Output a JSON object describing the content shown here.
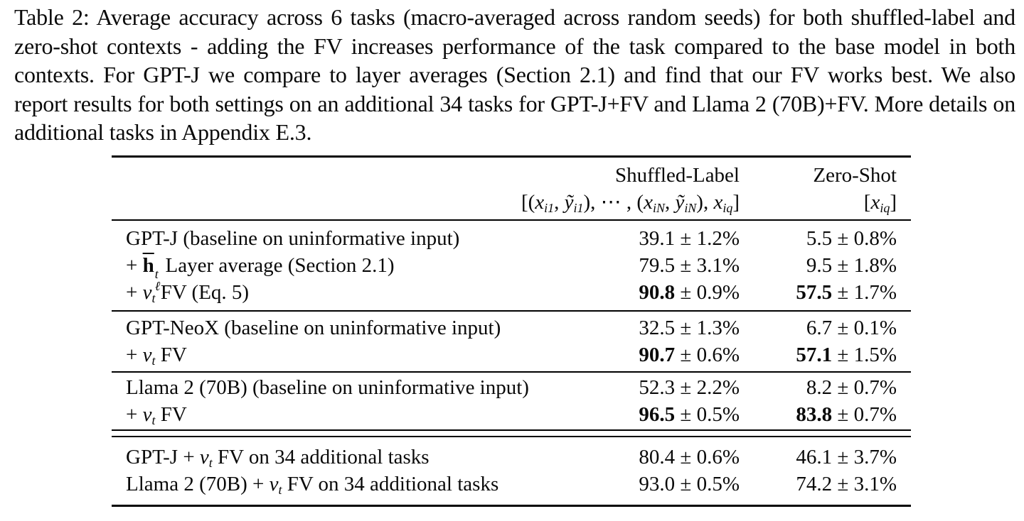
{
  "caption": {
    "text": "Table 2: Average accuracy across 6 tasks (macro-averaged across random seeds) for both shuffled-label and zero-shot contexts - adding the FV increases performance of the task compared to the base model in both contexts. For GPT-J we compare to layer averages (Section 2.1) and find that our FV works best. We also report results for both settings on an additional 34 tasks for GPT-J+FV and Llama 2 (70B)+FV. More details on additional tasks in Appendix E.3."
  },
  "table": {
    "header": {
      "col1": {
        "title": "Shuffled-Label",
        "formula": [
          {
            "t": "[("
          },
          {
            "t": "x",
            "i": true,
            "sub": "i1"
          },
          {
            "t": ", "
          },
          {
            "t": "ỹ",
            "i": true,
            "sub": "i1"
          },
          {
            "t": "), ⋯ , ("
          },
          {
            "t": "x",
            "i": true,
            "sub": "iN"
          },
          {
            "t": ", "
          },
          {
            "t": "ỹ",
            "i": true,
            "sub": "iN"
          },
          {
            "t": "), "
          },
          {
            "t": "x",
            "i": true,
            "sub": "iq"
          },
          {
            "t": "]"
          }
        ]
      },
      "col2": {
        "title": "Zero-Shot",
        "formula": [
          {
            "t": "["
          },
          {
            "t": "x",
            "i": true,
            "sub": "iq"
          },
          {
            "t": "]"
          }
        ]
      }
    },
    "sections": [
      {
        "rows": [
          {
            "label": [
              {
                "t": "GPT-J (baseline on uninformative input)"
              }
            ],
            "c1": [
              {
                "t": "39.1 ± 1.2%"
              }
            ],
            "c2": [
              {
                "t": "5.5 ± 0.8%"
              }
            ]
          },
          {
            "label": [
              {
                "t": "+ "
              },
              {
                "t": "h",
                "b": true,
                "bar": true,
                "sup": "t",
                "sub": "ℓ"
              },
              {
                "t": " Layer average (Section 2.1)"
              }
            ],
            "c1": [
              {
                "t": "79.5 ± 3.1%"
              }
            ],
            "c2": [
              {
                "t": "9.5 ± 1.8%"
              }
            ]
          },
          {
            "label": [
              {
                "t": "+ "
              },
              {
                "t": "v",
                "i": true,
                "sub": "t"
              },
              {
                "t": " FV (Eq. 5)"
              }
            ],
            "c1": [
              {
                "t": "90.8",
                "b": true
              },
              {
                "t": " ± 0.9%"
              }
            ],
            "c2": [
              {
                "t": "57.5",
                "b": true
              },
              {
                "t": " ± 1.7%"
              }
            ]
          }
        ]
      },
      {
        "rows": [
          {
            "label": [
              {
                "t": "GPT-NeoX (baseline on uninformative input)"
              }
            ],
            "c1": [
              {
                "t": "32.5 ± 1.3%"
              }
            ],
            "c2": [
              {
                "t": "6.7 ± 0.1%"
              }
            ]
          },
          {
            "label": [
              {
                "t": "+ "
              },
              {
                "t": "v",
                "i": true,
                "sub": "t"
              },
              {
                "t": " FV"
              }
            ],
            "c1": [
              {
                "t": "90.7",
                "b": true
              },
              {
                "t": " ± 0.6%"
              }
            ],
            "c2": [
              {
                "t": "57.1",
                "b": true
              },
              {
                "t": " ± 1.5%"
              }
            ]
          }
        ]
      },
      {
        "rows": [
          {
            "label": [
              {
                "t": "Llama 2 (70B) (baseline on uninformative input)"
              }
            ],
            "c1": [
              {
                "t": "52.3 ± 2.2%"
              }
            ],
            "c2": [
              {
                "t": "8.2 ± 0.7%"
              }
            ]
          },
          {
            "label": [
              {
                "t": "+ "
              },
              {
                "t": "v",
                "i": true,
                "sub": "t"
              },
              {
                "t": " FV"
              }
            ],
            "c1": [
              {
                "t": "96.5",
                "b": true
              },
              {
                "t": " ± 0.5%"
              }
            ],
            "c2": [
              {
                "t": "83.8",
                "b": true
              },
              {
                "t": " ± 0.7%"
              }
            ]
          }
        ]
      },
      {
        "rows": [
          {
            "label": [
              {
                "t": "GPT-J + "
              },
              {
                "t": "v",
                "i": true,
                "sub": "t"
              },
              {
                "t": " FV on 34 additional tasks"
              }
            ],
            "c1": [
              {
                "t": "80.4 ± 0.6%"
              }
            ],
            "c2": [
              {
                "t": "46.1 ± 3.7%"
              }
            ]
          },
          {
            "label": [
              {
                "t": "Llama 2 (70B) + "
              },
              {
                "t": "v",
                "i": true,
                "sub": "t"
              },
              {
                "t": " FV on 34 additional tasks"
              }
            ],
            "c1": [
              {
                "t": "93.0 ± 0.5%"
              }
            ],
            "c2": [
              {
                "t": "74.2 ± 3.1%"
              }
            ]
          }
        ]
      }
    ]
  }
}
